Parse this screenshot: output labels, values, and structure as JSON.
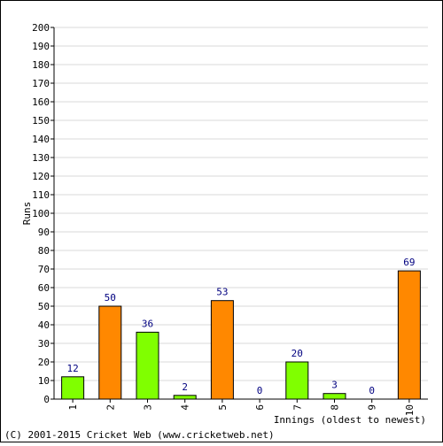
{
  "chart_data": {
    "type": "bar",
    "categories": [
      "1",
      "2",
      "3",
      "4",
      "5",
      "6",
      "7",
      "8",
      "9",
      "10"
    ],
    "values": [
      12,
      50,
      36,
      2,
      53,
      0,
      20,
      3,
      0,
      69
    ],
    "bar_colors": [
      "#80ff00",
      "#ff8800",
      "#80ff00",
      "#80ff00",
      "#ff8800",
      "#80ff00",
      "#80ff00",
      "#80ff00",
      "#80ff00",
      "#ff8800"
    ],
    "data_labels": [
      "12",
      "50",
      "36",
      "2",
      "53",
      "0",
      "20",
      "3",
      "0",
      "69"
    ],
    "xlabel": "Innings (oldest to newest)",
    "ylabel": "Runs",
    "ylim": [
      0,
      200
    ],
    "ytick_step": 10,
    "grid": true,
    "legend": "none",
    "x_tick_rotation": "vertical",
    "colors": {
      "grid": "#d8d8d8",
      "label_text": "#000080",
      "bar_outline": "#000000"
    }
  },
  "credit": "(C) 2001-2015 Cricket Web (www.cricketweb.net)"
}
